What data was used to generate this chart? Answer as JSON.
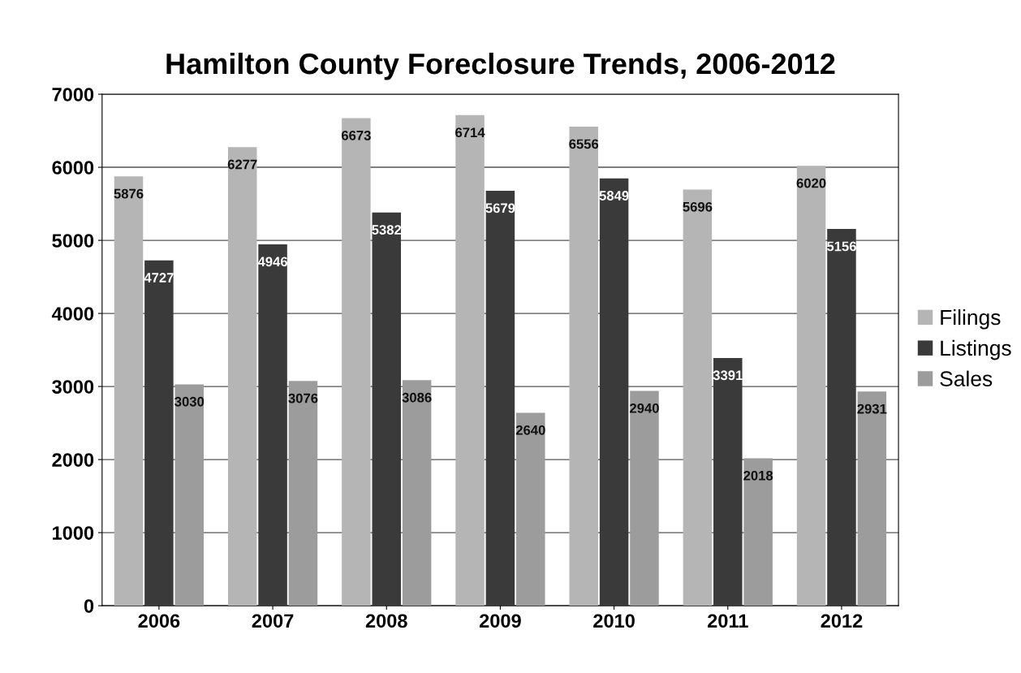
{
  "chart_data": {
    "type": "bar",
    "title": "Hamilton County Foreclosure Trends, 2006-2012",
    "categories": [
      "2006",
      "2007",
      "2008",
      "2009",
      "2010",
      "2011",
      "2012"
    ],
    "series": [
      {
        "name": "Filings",
        "color": "#b5b5b5",
        "values": [
          5876,
          6277,
          6673,
          6714,
          6556,
          5696,
          6020
        ]
      },
      {
        "name": "Listings",
        "color": "#3a3a3a",
        "values": [
          4727,
          4946,
          5382,
          5679,
          5849,
          3391,
          5156
        ]
      },
      {
        "name": "Sales",
        "color": "#9c9c9c",
        "values": [
          3030,
          3076,
          3086,
          2640,
          2940,
          2018,
          2931
        ]
      }
    ],
    "ylim": [
      0,
      7000
    ],
    "yticks": [
      0,
      1000,
      2000,
      3000,
      4000,
      5000,
      6000,
      7000
    ],
    "grid": "y",
    "legend": "right",
    "data_labels": true
  }
}
